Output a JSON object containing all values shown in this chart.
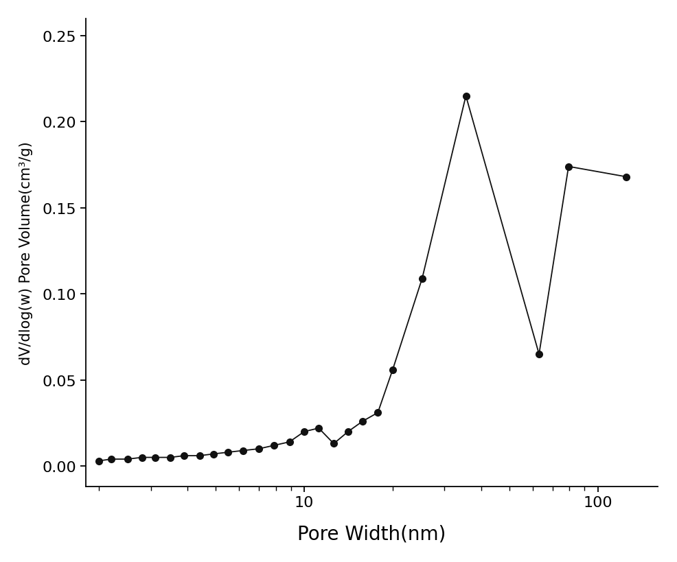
{
  "x": [
    2.0,
    2.2,
    2.5,
    2.8,
    3.1,
    3.5,
    3.9,
    4.4,
    4.9,
    5.5,
    6.2,
    7.0,
    7.9,
    8.9,
    10.0,
    11.2,
    12.6,
    14.1,
    15.8,
    17.8,
    20.0,
    25.2,
    35.5,
    63.0,
    79.4,
    125.0
  ],
  "y": [
    0.003,
    0.004,
    0.004,
    0.005,
    0.005,
    0.005,
    0.006,
    0.006,
    0.007,
    0.008,
    0.009,
    0.01,
    0.012,
    0.014,
    0.02,
    0.022,
    0.013,
    0.02,
    0.026,
    0.031,
    0.056,
    0.109,
    0.215,
    0.065,
    0.174,
    0.168
  ],
  "xlabel": "Pore Width(nm)",
  "ylabel": "dV/dlog(w) Pore Volume(cm³/g)",
  "xlim": [
    1.8,
    160
  ],
  "ylim": [
    -0.012,
    0.26
  ],
  "yticks": [
    0.0,
    0.05,
    0.1,
    0.15,
    0.2,
    0.25
  ],
  "ytick_labels": [
    "0.00",
    "0.05",
    "0.10",
    "0.15",
    "0.20",
    "0.25"
  ],
  "xtick_major": [
    10,
    100
  ],
  "xtick_major_labels": [
    "10",
    "100"
  ],
  "line_color": "#111111",
  "marker_color": "#111111",
  "marker_size": 7,
  "line_width": 1.3,
  "xlabel_fontsize": 20,
  "ylabel_fontsize": 15,
  "tick_fontsize": 16,
  "fig_width": 9.86,
  "fig_height": 8.2,
  "dpi": 100
}
